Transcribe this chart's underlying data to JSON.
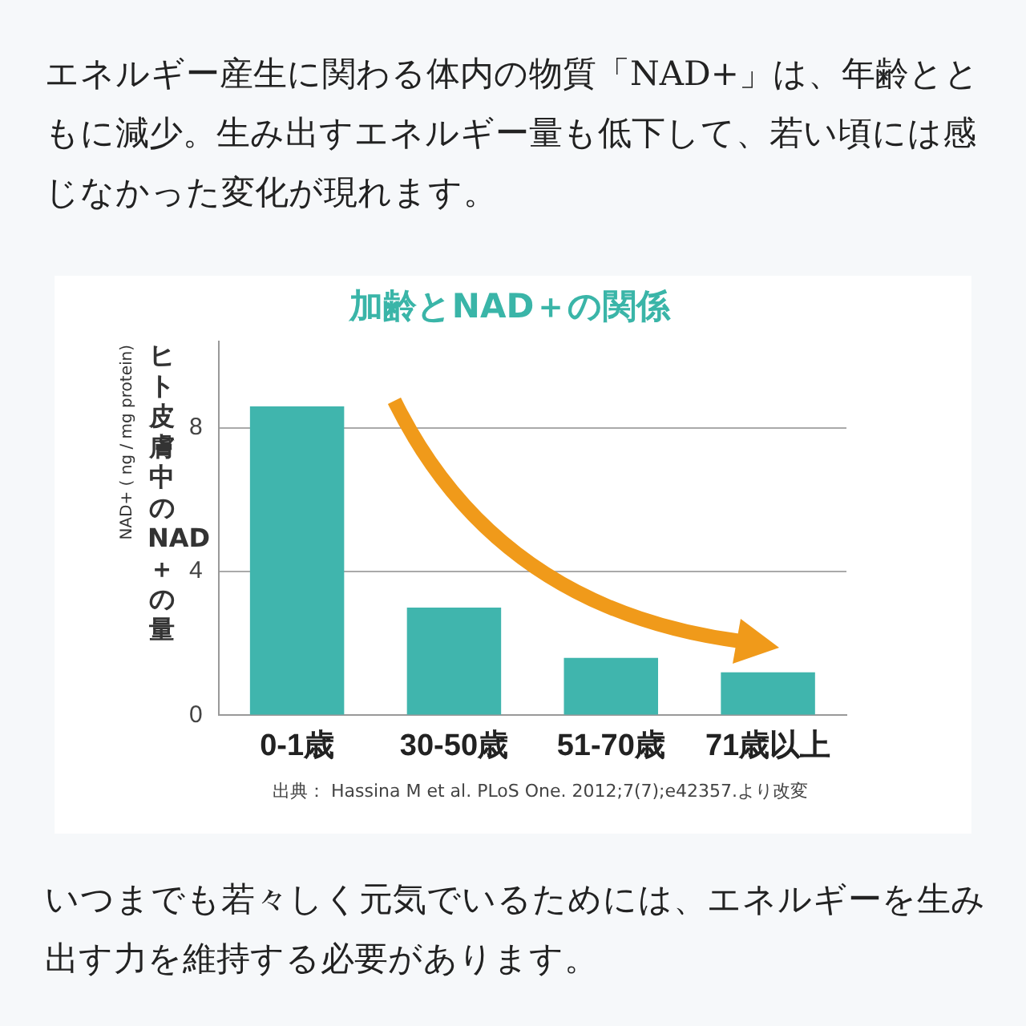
{
  "chart_data": {
    "type": "bar",
    "title": "加齢とNAD＋の関係",
    "ylabel": "ヒト皮膚中のNAD＋の量",
    "categories": [
      "0-1歳",
      "30-50歳",
      "51-70歳",
      "71歳以上"
    ],
    "values": [
      8.6,
      3.0,
      1.6,
      1.2
    ],
    "color": "#40b5ad",
    "ylim": [
      0,
      10.4
    ],
    "yticks": [
      0,
      4,
      8
    ],
    "grid": "y",
    "legend": false,
    "annotations": [
      "エネルギー産生に関わる体内の物質「NAD+」は、年齢とともに減少。生み出すエネルギー量も低下して、若い頃には感じなかった変化が現れます。",
      "NAD+ ( ng / mg protein)",
      "出典： Hassina M et al. PLoS One. 2012;7(7);e42357.より改変",
      "いつまでも若々しく元気でいるためには、エネルギーを生み出す力を維持する必要があります。"
    ]
  }
}
